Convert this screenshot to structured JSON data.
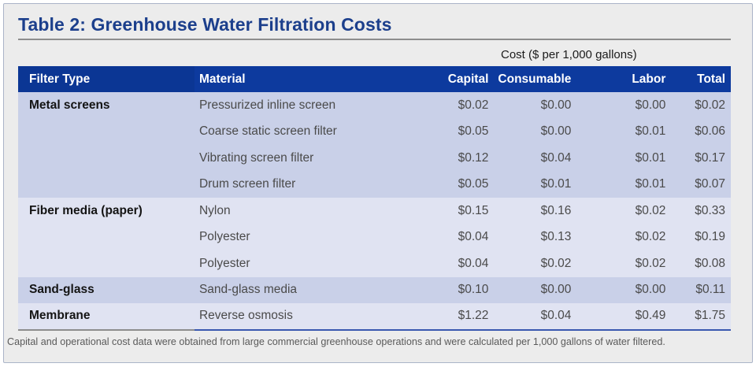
{
  "title": "Table 2: Greenhouse Water Filtration Costs",
  "cost_caption": "Cost ($ per 1,000 gallons)",
  "columns": [
    "Filter Type",
    "Material",
    "Capital",
    "Consumable",
    "Labor",
    "Total"
  ],
  "rows": [
    {
      "type": "Metal screens",
      "material": "Pressurized inline screen",
      "capital": "$0.02",
      "consumable": "$0.00",
      "labor": "$0.00",
      "total": "$0.02"
    },
    {
      "type": "",
      "material": "Coarse static screen filter",
      "capital": "$0.05",
      "consumable": "$0.00",
      "labor": "$0.01",
      "total": "$0.06"
    },
    {
      "type": "",
      "material": "Vibrating screen filter",
      "capital": "$0.12",
      "consumable": "$0.04",
      "labor": "$0.01",
      "total": "$0.17"
    },
    {
      "type": "",
      "material": "Drum screen filter",
      "capital": "$0.05",
      "consumable": "$0.01",
      "labor": "$0.01",
      "total": "$0.07"
    },
    {
      "type": "Fiber media (paper)",
      "material": "Nylon",
      "capital": "$0.15",
      "consumable": "$0.16",
      "labor": "$0.02",
      "total": "$0.33"
    },
    {
      "type": "",
      "material": "Polyester",
      "capital": "$0.04",
      "consumable": "$0.13",
      "labor": "$0.02",
      "total": "$0.19"
    },
    {
      "type": "",
      "material": "Polyester",
      "capital": "$0.04",
      "consumable": "$0.02",
      "labor": "$0.02",
      "total": "$0.08"
    },
    {
      "type": "Sand-glass",
      "material": "Sand-glass media",
      "capital": "$0.10",
      "consumable": "$0.00",
      "labor": "$0.00",
      "total": "$0.11"
    },
    {
      "type": "Membrane",
      "material": "Reverse osmosis",
      "capital": "$1.22",
      "consumable": "$0.04",
      "labor": "$0.49",
      "total": "$1.75"
    }
  ],
  "footnote": "Capital and operational cost data were obtained from large commercial greenhouse operations and were calculated per 1,000 gallons of water filtered.",
  "colors": {
    "title": "#1c3f8c",
    "header_bg": "#0d3a9e",
    "row_dark": "#c9d0e8",
    "row_light": "#e0e3f2",
    "frame_bg": "#ececec"
  }
}
